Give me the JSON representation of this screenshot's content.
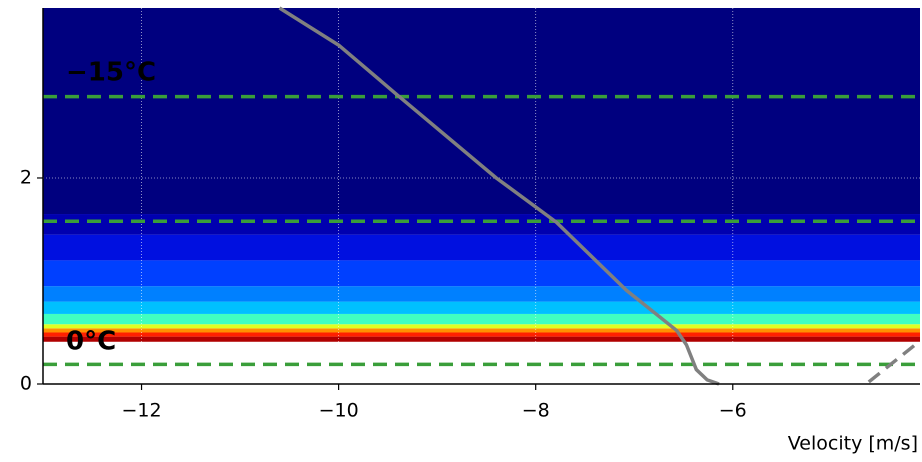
{
  "chart_data": {
    "type": "heatmap",
    "x_label": "Velocity [m/s]",
    "xlim": [
      -13,
      -4.1
    ],
    "ylim": [
      0,
      3.65
    ],
    "xticks": [
      {
        "value": -12,
        "label": "−12"
      },
      {
        "value": -10,
        "label": "−10"
      },
      {
        "value": -8,
        "label": "−8"
      },
      {
        "value": -6,
        "label": "−6"
      }
    ],
    "yticks": [
      0,
      2
    ],
    "grid": true,
    "heatmap": {
      "y_bins": [
        0.41,
        0.46,
        0.5,
        0.54,
        0.58,
        0.68,
        0.8,
        0.95,
        1.2,
        1.45,
        1.65,
        3.65
      ],
      "colors": [
        "#b00000",
        "#ff2000",
        "#ff9000",
        "#e0ff20",
        "#40ffc0",
        "#00c0ff",
        "#0080ff",
        "#0040ff",
        "#0010e0",
        "#0000b0",
        "#00007f"
      ]
    },
    "hlines": {
      "values": [
        2.79,
        1.58,
        0.19
      ],
      "color": "#3a9e3a"
    },
    "annotations": [
      "−15°C",
      "0°C"
    ],
    "series": [
      {
        "color": "#808080",
        "x": [
          -10.6,
          -10.0,
          -9.41,
          -8.4,
          -7.79,
          -7.08,
          -6.57,
          -6.47,
          -6.37,
          -6.26,
          -6.14
        ],
        "values": [
          3.65,
          3.29,
          2.81,
          2.0,
          1.57,
          0.91,
          0.52,
          0.38,
          0.14,
          0.04,
          0.0
        ]
      },
      {
        "color": "#808080",
        "dashed": true,
        "x": [
          -4.62,
          -4.15
        ],
        "values": [
          0.02,
          0.38
        ]
      }
    ]
  }
}
